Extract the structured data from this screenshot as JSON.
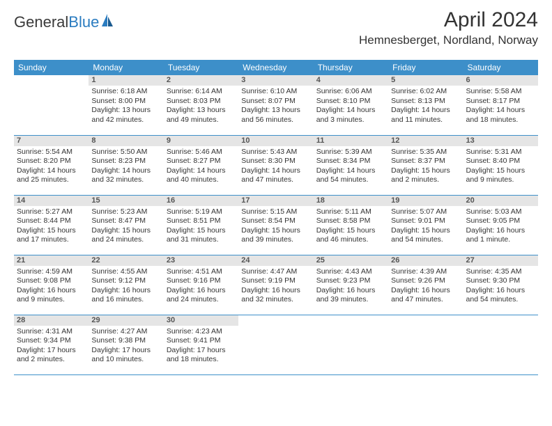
{
  "logo": {
    "part1": "General",
    "part2": "Blue"
  },
  "title": "April 2024",
  "location": "Hemnesberget, Nordland, Norway",
  "weekdays": [
    "Sunday",
    "Monday",
    "Tuesday",
    "Wednesday",
    "Thursday",
    "Friday",
    "Saturday"
  ],
  "colors": {
    "header_bg": "#3d8fc9",
    "header_text": "#ffffff",
    "daynum_bg": "#e5e5e5",
    "border": "#3d8fc9",
    "logo_accent": "#2b7cc0"
  },
  "days": [
    {
      "n": 1,
      "sunrise": "6:18 AM",
      "sunset": "8:00 PM",
      "daylight": "13 hours and 42 minutes."
    },
    {
      "n": 2,
      "sunrise": "6:14 AM",
      "sunset": "8:03 PM",
      "daylight": "13 hours and 49 minutes."
    },
    {
      "n": 3,
      "sunrise": "6:10 AM",
      "sunset": "8:07 PM",
      "daylight": "13 hours and 56 minutes."
    },
    {
      "n": 4,
      "sunrise": "6:06 AM",
      "sunset": "8:10 PM",
      "daylight": "14 hours and 3 minutes."
    },
    {
      "n": 5,
      "sunrise": "6:02 AM",
      "sunset": "8:13 PM",
      "daylight": "14 hours and 11 minutes."
    },
    {
      "n": 6,
      "sunrise": "5:58 AM",
      "sunset": "8:17 PM",
      "daylight": "14 hours and 18 minutes."
    },
    {
      "n": 7,
      "sunrise": "5:54 AM",
      "sunset": "8:20 PM",
      "daylight": "14 hours and 25 minutes."
    },
    {
      "n": 8,
      "sunrise": "5:50 AM",
      "sunset": "8:23 PM",
      "daylight": "14 hours and 32 minutes."
    },
    {
      "n": 9,
      "sunrise": "5:46 AM",
      "sunset": "8:27 PM",
      "daylight": "14 hours and 40 minutes."
    },
    {
      "n": 10,
      "sunrise": "5:43 AM",
      "sunset": "8:30 PM",
      "daylight": "14 hours and 47 minutes."
    },
    {
      "n": 11,
      "sunrise": "5:39 AM",
      "sunset": "8:34 PM",
      "daylight": "14 hours and 54 minutes."
    },
    {
      "n": 12,
      "sunrise": "5:35 AM",
      "sunset": "8:37 PM",
      "daylight": "15 hours and 2 minutes."
    },
    {
      "n": 13,
      "sunrise": "5:31 AM",
      "sunset": "8:40 PM",
      "daylight": "15 hours and 9 minutes."
    },
    {
      "n": 14,
      "sunrise": "5:27 AM",
      "sunset": "8:44 PM",
      "daylight": "15 hours and 17 minutes."
    },
    {
      "n": 15,
      "sunrise": "5:23 AM",
      "sunset": "8:47 PM",
      "daylight": "15 hours and 24 minutes."
    },
    {
      "n": 16,
      "sunrise": "5:19 AM",
      "sunset": "8:51 PM",
      "daylight": "15 hours and 31 minutes."
    },
    {
      "n": 17,
      "sunrise": "5:15 AM",
      "sunset": "8:54 PM",
      "daylight": "15 hours and 39 minutes."
    },
    {
      "n": 18,
      "sunrise": "5:11 AM",
      "sunset": "8:58 PM",
      "daylight": "15 hours and 46 minutes."
    },
    {
      "n": 19,
      "sunrise": "5:07 AM",
      "sunset": "9:01 PM",
      "daylight": "15 hours and 54 minutes."
    },
    {
      "n": 20,
      "sunrise": "5:03 AM",
      "sunset": "9:05 PM",
      "daylight": "16 hours and 1 minute."
    },
    {
      "n": 21,
      "sunrise": "4:59 AM",
      "sunset": "9:08 PM",
      "daylight": "16 hours and 9 minutes."
    },
    {
      "n": 22,
      "sunrise": "4:55 AM",
      "sunset": "9:12 PM",
      "daylight": "16 hours and 16 minutes."
    },
    {
      "n": 23,
      "sunrise": "4:51 AM",
      "sunset": "9:16 PM",
      "daylight": "16 hours and 24 minutes."
    },
    {
      "n": 24,
      "sunrise": "4:47 AM",
      "sunset": "9:19 PM",
      "daylight": "16 hours and 32 minutes."
    },
    {
      "n": 25,
      "sunrise": "4:43 AM",
      "sunset": "9:23 PM",
      "daylight": "16 hours and 39 minutes."
    },
    {
      "n": 26,
      "sunrise": "4:39 AM",
      "sunset": "9:26 PM",
      "daylight": "16 hours and 47 minutes."
    },
    {
      "n": 27,
      "sunrise": "4:35 AM",
      "sunset": "9:30 PM",
      "daylight": "16 hours and 54 minutes."
    },
    {
      "n": 28,
      "sunrise": "4:31 AM",
      "sunset": "9:34 PM",
      "daylight": "17 hours and 2 minutes."
    },
    {
      "n": 29,
      "sunrise": "4:27 AM",
      "sunset": "9:38 PM",
      "daylight": "17 hours and 10 minutes."
    },
    {
      "n": 30,
      "sunrise": "4:23 AM",
      "sunset": "9:41 PM",
      "daylight": "17 hours and 18 minutes."
    }
  ],
  "labels": {
    "sunrise": "Sunrise: ",
    "sunset": "Sunset: ",
    "daylight": "Daylight: "
  },
  "layout": {
    "first_day_column": 1,
    "total_days": 30
  }
}
